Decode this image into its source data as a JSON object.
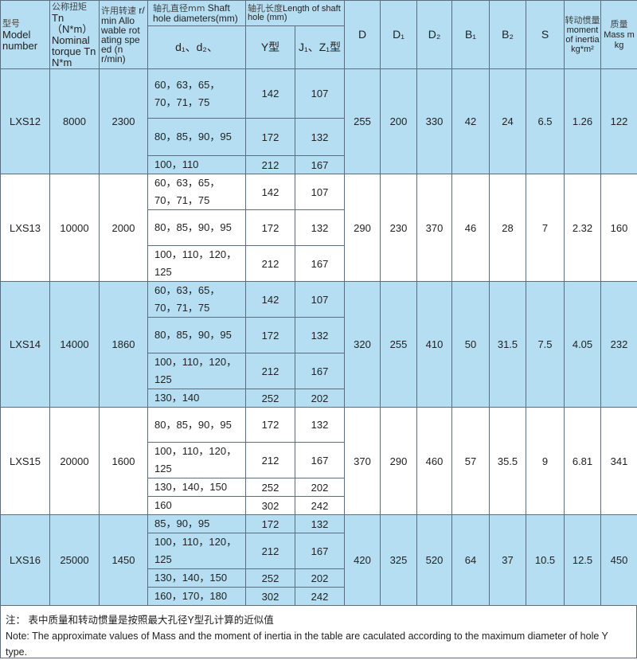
{
  "header": {
    "model": {
      "cn": "型号",
      "en": "Model number"
    },
    "torque": {
      "cn": "公称扭矩",
      "en": "Tn（N*m） Nominal torque Tn N*m"
    },
    "speed": {
      "cn": "许用转速",
      "en": "r/ min Allo wable rot ating spe ed (n r/min)"
    },
    "shaft_diam": {
      "cn": "轴孔直径mm",
      "en": "Shaft hole diameters(mm)"
    },
    "shaft_len": {
      "cn": "轴孔长度",
      "en": "Length of shaft hole (mm)"
    },
    "d_cols": "d₁、d₂、",
    "y_type": "Y型",
    "jz_type": "J₁、Z₁型",
    "D": "D",
    "D1": "D₁",
    "D2": "D₂",
    "B1": "B₁",
    "B2": "B₂",
    "S": "S",
    "inertia": {
      "cn": "转动惯量",
      "en": "moment of inertia kg*m²"
    },
    "mass": {
      "cn": "质量",
      "en": "Mass m kg"
    }
  },
  "rows": [
    {
      "model": "LXS12",
      "torque": "8000",
      "speed": "2300",
      "holes": [
        [
          "60，63，65，70，71，75",
          "142",
          "107"
        ],
        [
          "80，85，90，95",
          "172",
          "132"
        ],
        [
          "100，110",
          "212",
          "167"
        ]
      ],
      "D": "255",
      "D1": "200",
      "D2": "330",
      "B1": "42",
      "B2": "24",
      "S": "6.5",
      "inertia": "1.26",
      "mass": "122"
    },
    {
      "model": "LXS13",
      "torque": "10000",
      "speed": "2000",
      "holes": [
        [
          "60，63，65，70，71，75",
          "142",
          "107"
        ],
        [
          "80，85，90，95",
          "172",
          "132"
        ],
        [
          "100，110，120，125",
          "212",
          "167"
        ]
      ],
      "D": "290",
      "D1": "230",
      "D2": "370",
      "B1": "46",
      "B2": "28",
      "S": "7",
      "inertia": "2.32",
      "mass": "160"
    },
    {
      "model": "LXS14",
      "torque": "14000",
      "speed": "1860",
      "holes": [
        [
          "60，63，65，70，71，75",
          "142",
          "107"
        ],
        [
          "80，85，90，95",
          "172",
          "132"
        ],
        [
          "100，110，120，125",
          "212",
          "167"
        ],
        [
          "130，140",
          "252",
          "202"
        ]
      ],
      "D": "320",
      "D1": "255",
      "D2": "410",
      "B1": "50",
      "B2": "31.5",
      "S": "7.5",
      "inertia": "4.05",
      "mass": "232"
    },
    {
      "model": "LXS15",
      "torque": "20000",
      "speed": "1600",
      "holes": [
        [
          "80，85，90，95",
          "172",
          "132"
        ],
        [
          "100，110，120，125",
          "212",
          "167"
        ],
        [
          "130，140，150",
          "252",
          "202"
        ],
        [
          "160",
          "302",
          "242"
        ]
      ],
      "D": "370",
      "D1": "290",
      "D2": "460",
      "B1": "57",
      "B2": "35.5",
      "S": "9",
      "inertia": "6.81",
      "mass": "341"
    },
    {
      "model": "LXS16",
      "torque": "25000",
      "speed": "1450",
      "holes": [
        [
          "85，90，95",
          "172",
          "132"
        ],
        [
          "100，110，120，125",
          "212",
          "167"
        ],
        [
          "130，140，150",
          "252",
          "202"
        ],
        [
          "160，170，180",
          "302",
          "242"
        ]
      ],
      "D": "420",
      "D1": "325",
      "D2": "520",
      "B1": "64",
      "B2": "37",
      "S": "10.5",
      "inertia": "12.5",
      "mass": "450"
    }
  ],
  "notes": {
    "cn": "注：  表中质量和转动惯量是按照最大孔径Y型孔计算的近似值",
    "en": "Note: The approximate values of Mass and the moment of inertia in the table are caculated according to the maximum diameter of hole Y type."
  },
  "colors": {
    "header_bg": "#b5def2",
    "row_alt_bg": "#b5def2",
    "border": "#5a6e80"
  }
}
